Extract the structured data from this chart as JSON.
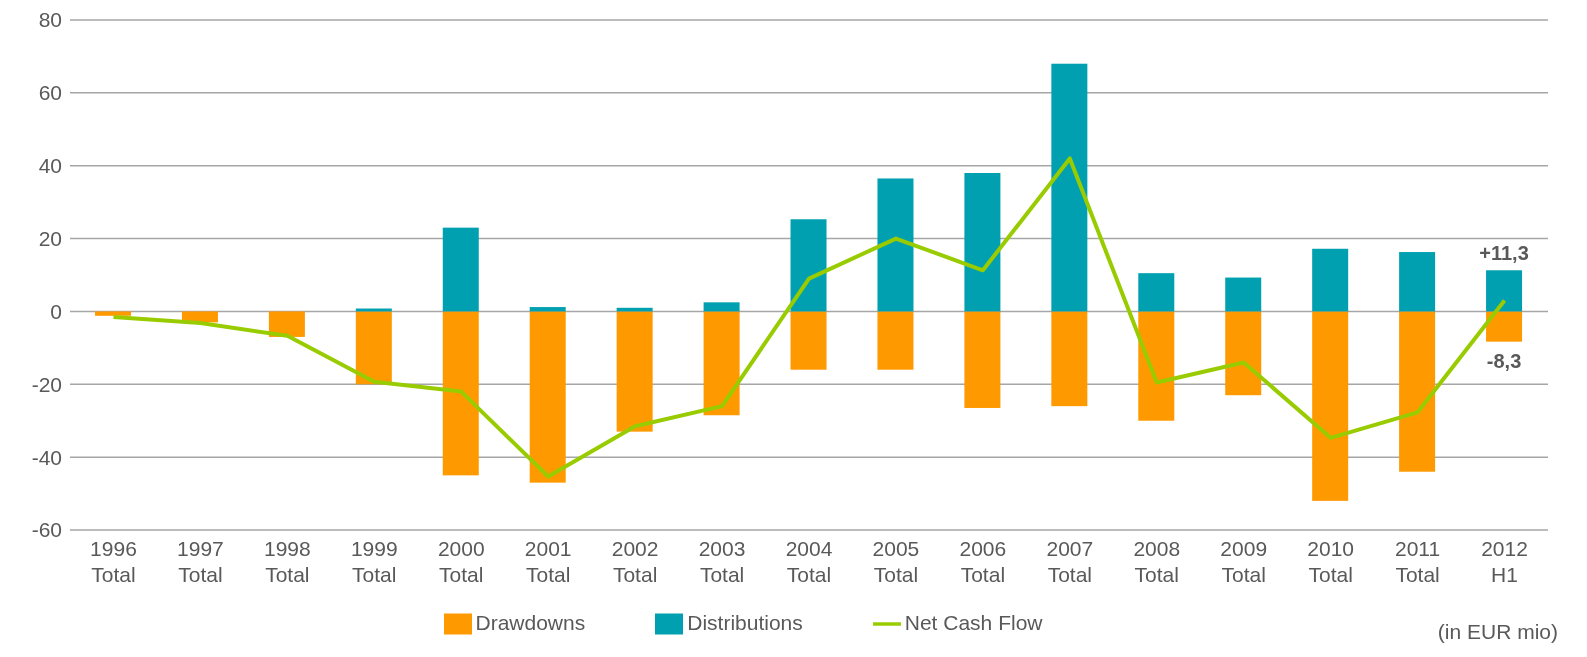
{
  "chart_data": {
    "type": "bar",
    "stacked": true,
    "categories": [
      "1996 Total",
      "1997 Total",
      "1998 Total",
      "1999 Total",
      "2000 Total",
      "2001 Total",
      "2002 Total",
      "2003 Total",
      "2004 Total",
      "2005 Total",
      "2006 Total",
      "2007 Total",
      "2008 Total",
      "2009 Total",
      "2010 Total",
      "2011 Total",
      "2012 H1"
    ],
    "series": [
      {
        "name": "Drawdowns",
        "color": "#ff9900",
        "values": [
          -1.2,
          -3,
          -7,
          -20,
          -45,
          -47,
          -33,
          -28.5,
          -16,
          -16,
          -26.5,
          -26,
          -30,
          -23,
          -52,
          -44,
          -8.3
        ],
        "value_labels": [
          null,
          null,
          null,
          null,
          null,
          null,
          null,
          null,
          null,
          null,
          null,
          null,
          null,
          null,
          null,
          null,
          "-8,3"
        ]
      },
      {
        "name": "Distributions",
        "color": "#00a0b0",
        "values": [
          0,
          0,
          0,
          0.8,
          23,
          1.2,
          1,
          2.5,
          25.3,
          36.5,
          38,
          68,
          10.5,
          9.3,
          17.2,
          16.3,
          11.3
        ],
        "value_labels": [
          null,
          null,
          null,
          null,
          null,
          null,
          null,
          null,
          null,
          null,
          null,
          null,
          null,
          null,
          null,
          null,
          "+11,3"
        ]
      },
      {
        "name": "Net Cash Flow",
        "type": "line",
        "color": "#99cc00",
        "values": [
          -1.5,
          -3.2,
          -6.7,
          -19.3,
          -22,
          -45.3,
          -31.5,
          -26,
          9,
          20,
          11.3,
          42,
          -19.5,
          -14,
          -34.7,
          -27.7,
          3
        ]
      }
    ],
    "ylim": [
      -60,
      80
    ],
    "yticks": [
      -60,
      -40,
      -20,
      0,
      20,
      40,
      60,
      80
    ],
    "grid": "y",
    "legend": "bottom",
    "marker": "none",
    "annotations": [
      "(in EUR mio)"
    ]
  }
}
